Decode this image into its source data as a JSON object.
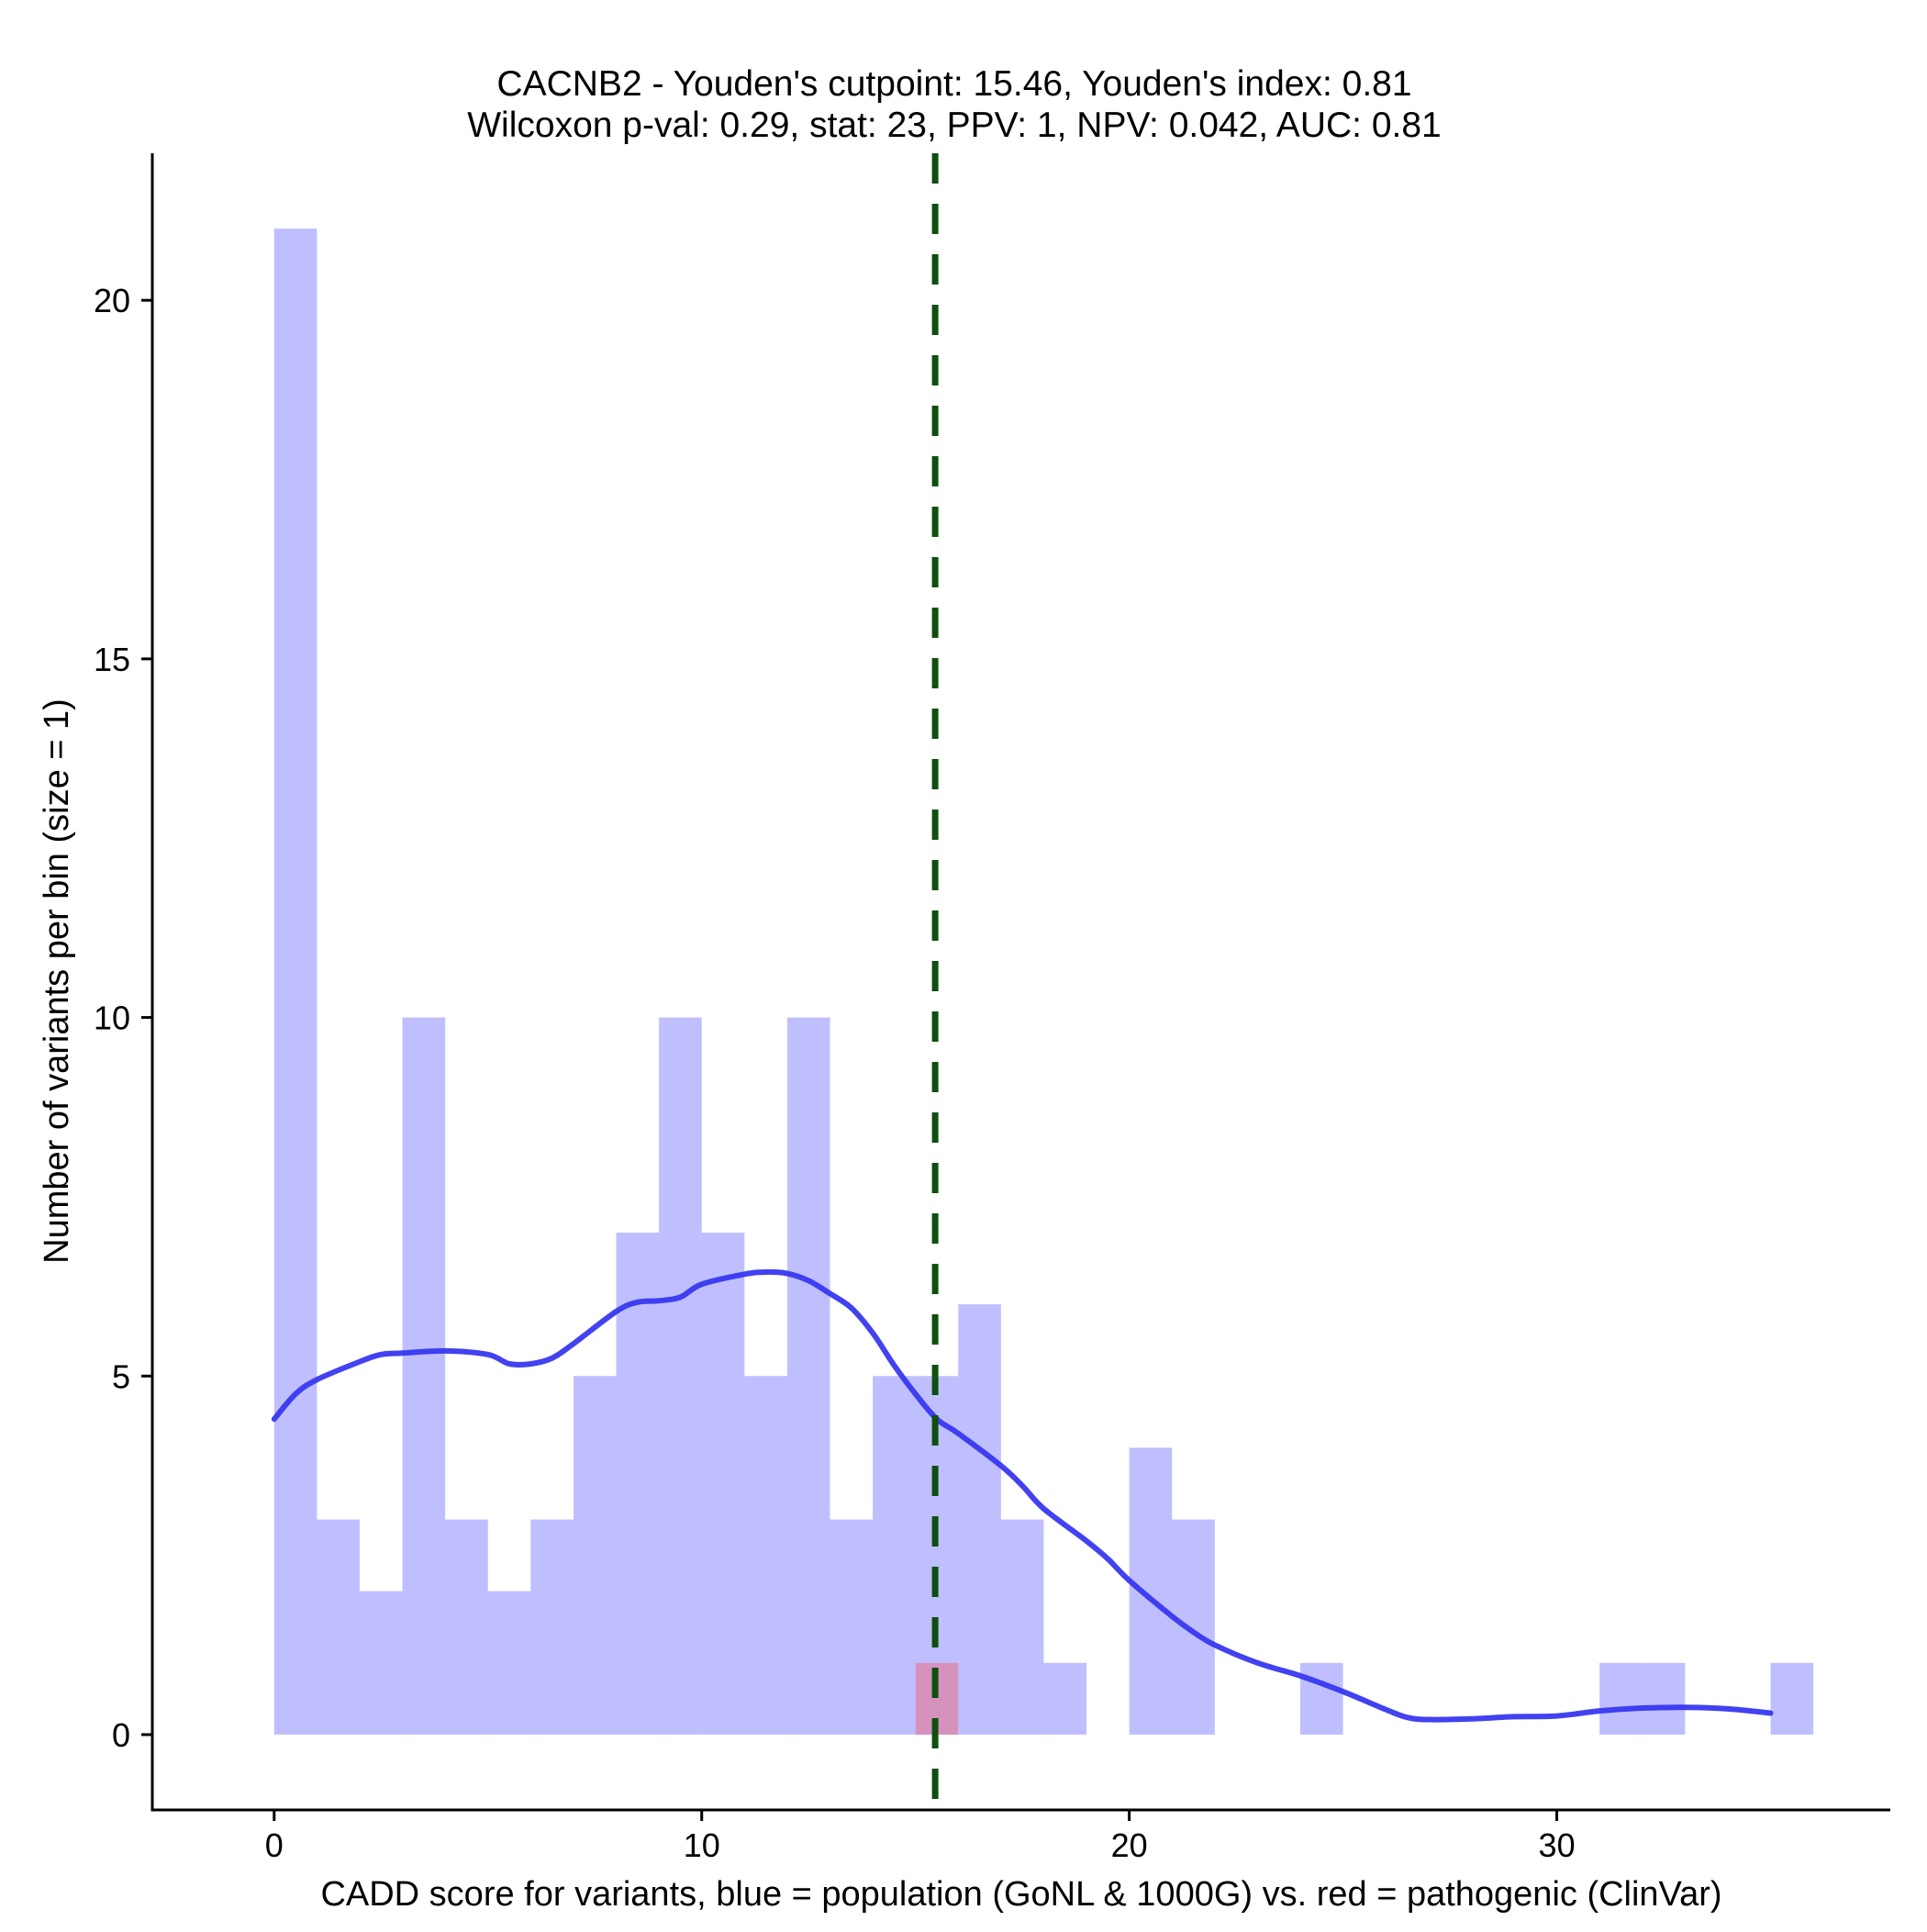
{
  "chart_data": {
    "type": "bar",
    "title": [
      "CACNB2 - Youden's cutpoint: 15.46, Youden's index: 0.81",
      "Wilcoxon p-val: 0.29, stat: 23, PPV: 1, NPV: 0.042, AUC: 0.81"
    ],
    "xlabel": "CADD score for variants, blue = population (GoNL & 1000G) vs. red = pathogenic (ClinVar)",
    "ylabel": "Number of variants per bin (size = 1)",
    "xlim": [
      -2.85,
      37.8
    ],
    "ylim": [
      -1.05,
      22.05
    ],
    "x_ticks": [
      0,
      10,
      20,
      30
    ],
    "x_tick_labels": [
      "0",
      "10",
      "20",
      "30"
    ],
    "y_ticks": [
      0,
      5,
      10,
      15,
      20
    ],
    "y_tick_labels": [
      "0",
      "5",
      "10",
      "15",
      "20"
    ],
    "bin_width": 1,
    "grid": false,
    "legend": "none",
    "series": [
      {
        "role": "population",
        "color": "#8080ff",
        "opacity": 0.5,
        "bins": [
          {
            "x0": 0,
            "count": 21
          },
          {
            "x0": 1,
            "count": 3
          },
          {
            "x0": 2,
            "count": 2
          },
          {
            "x0": 3,
            "count": 10
          },
          {
            "x0": 4,
            "count": 3
          },
          {
            "x0": 5,
            "count": 2
          },
          {
            "x0": 6,
            "count": 3
          },
          {
            "x0": 7,
            "count": 5
          },
          {
            "x0": 8,
            "count": 7
          },
          {
            "x0": 9,
            "count": 10
          },
          {
            "x0": 10,
            "count": 7
          },
          {
            "x0": 11,
            "count": 5
          },
          {
            "x0": 12,
            "count": 10
          },
          {
            "x0": 13,
            "count": 3
          },
          {
            "x0": 14,
            "count": 5
          },
          {
            "x0": 15,
            "count": 5
          },
          {
            "x0": 16,
            "count": 6
          },
          {
            "x0": 17,
            "count": 3
          },
          {
            "x0": 18,
            "count": 1
          },
          {
            "x0": 20,
            "count": 4
          },
          {
            "x0": 21,
            "count": 3
          },
          {
            "x0": 24,
            "count": 1
          },
          {
            "x0": 31,
            "count": 1
          },
          {
            "x0": 32,
            "count": 1
          },
          {
            "x0": 35,
            "count": 1
          }
        ]
      },
      {
        "role": "pathogenic",
        "color": "#ff4040",
        "opacity": 0.35,
        "bins": [
          {
            "x0": 15,
            "count": 1
          }
        ]
      }
    ],
    "density_line": {
      "color": "#3838f0",
      "points": [
        [
          0,
          4.4
        ],
        [
          0.5,
          4.75
        ],
        [
          1,
          4.95
        ],
        [
          2,
          5.2
        ],
        [
          2.5,
          5.3
        ],
        [
          3,
          5.32
        ],
        [
          4,
          5.35
        ],
        [
          5,
          5.3
        ],
        [
          5.5,
          5.17
        ],
        [
          6,
          5.17
        ],
        [
          6.5,
          5.25
        ],
        [
          7,
          5.45
        ],
        [
          8,
          5.9
        ],
        [
          8.5,
          6.03
        ],
        [
          9,
          6.05
        ],
        [
          9.5,
          6.1
        ],
        [
          10,
          6.28
        ],
        [
          11,
          6.42
        ],
        [
          11.5,
          6.45
        ],
        [
          12,
          6.43
        ],
        [
          12.5,
          6.33
        ],
        [
          13,
          6.15
        ],
        [
          13.5,
          5.95
        ],
        [
          14,
          5.6
        ],
        [
          14.5,
          5.15
        ],
        [
          15,
          4.75
        ],
        [
          15.5,
          4.4
        ],
        [
          16,
          4.2
        ],
        [
          17,
          3.75
        ],
        [
          17.5,
          3.47
        ],
        [
          18,
          3.15
        ],
        [
          19,
          2.7
        ],
        [
          19.5,
          2.45
        ],
        [
          20,
          2.15
        ],
        [
          21,
          1.65
        ],
        [
          21.5,
          1.43
        ],
        [
          22,
          1.25
        ],
        [
          23,
          1.0
        ],
        [
          24,
          0.82
        ],
        [
          25,
          0.6
        ],
        [
          26,
          0.35
        ],
        [
          26.5,
          0.24
        ],
        [
          27,
          0.21
        ],
        [
          28,
          0.22
        ],
        [
          29,
          0.25
        ],
        [
          30,
          0.26
        ],
        [
          31,
          0.33
        ],
        [
          32,
          0.37
        ],
        [
          33,
          0.38
        ],
        [
          34,
          0.36
        ],
        [
          35,
          0.3
        ]
      ]
    },
    "cutpoint": {
      "x": 15.46,
      "color": "#0f4f0f",
      "style": "dashed"
    }
  }
}
